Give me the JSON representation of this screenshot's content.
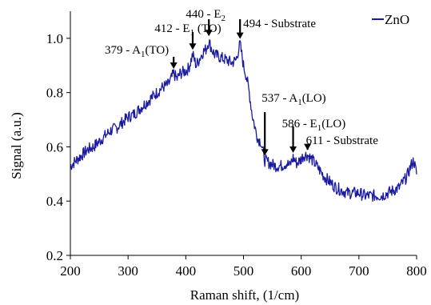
{
  "chart_data": {
    "type": "line",
    "xlabel": "Raman shift, (1/cm)",
    "ylabel": "Signal (a.u.)",
    "xlim": [
      200,
      800
    ],
    "ylim": [
      0.2,
      1.1
    ],
    "xticks": [
      200,
      300,
      400,
      500,
      600,
      700,
      800
    ],
    "yticks": [
      0.2,
      0.4,
      0.6,
      0.8,
      1.0
    ],
    "xtick_labels": [
      "200",
      "300",
      "400",
      "500",
      "600",
      "700",
      "800"
    ],
    "ytick_labels": [
      "0.2",
      "0.4",
      "0.6",
      "0.8",
      "1.0"
    ],
    "grid": false,
    "legend_position": "top-right",
    "series": [
      {
        "name": "ZnO",
        "color": "#1a1aa0",
        "x": [
          200,
          210,
          220,
          230,
          240,
          250,
          260,
          270,
          280,
          290,
          300,
          310,
          320,
          330,
          340,
          350,
          360,
          370,
          379,
          385,
          390,
          400,
          405,
          412,
          418,
          425,
          430,
          435,
          440,
          445,
          450,
          460,
          470,
          480,
          487,
          494,
          500,
          505,
          510,
          515,
          520,
          525,
          530,
          537,
          545,
          555,
          565,
          575,
          580,
          586,
          592,
          598,
          605,
          611,
          620,
          630,
          640,
          650,
          660,
          670,
          680,
          690,
          700,
          710,
          720,
          730,
          740,
          750,
          760,
          770,
          780,
          785,
          790,
          795,
          800
        ],
        "values": [
          0.53,
          0.55,
          0.57,
          0.59,
          0.6,
          0.62,
          0.64,
          0.66,
          0.67,
          0.69,
          0.71,
          0.72,
          0.74,
          0.76,
          0.78,
          0.8,
          0.82,
          0.83,
          0.87,
          0.85,
          0.87,
          0.88,
          0.89,
          0.94,
          0.9,
          0.93,
          0.95,
          0.96,
          0.99,
          0.96,
          0.94,
          0.93,
          0.92,
          0.91,
          0.92,
          0.98,
          0.9,
          0.86,
          0.8,
          0.72,
          0.67,
          0.63,
          0.62,
          0.55,
          0.54,
          0.53,
          0.53,
          0.54,
          0.53,
          0.56,
          0.54,
          0.55,
          0.57,
          0.57,
          0.55,
          0.52,
          0.49,
          0.47,
          0.45,
          0.44,
          0.43,
          0.43,
          0.43,
          0.42,
          0.42,
          0.42,
          0.42,
          0.43,
          0.44,
          0.45,
          0.48,
          0.5,
          0.53,
          0.55,
          0.5
        ]
      }
    ],
    "annotations": [
      {
        "label": "379 - A",
        "sub": "1",
        "rest": "(TO)",
        "x": 379,
        "y": 0.87
      },
      {
        "label": "412 - E",
        "sub": "1",
        "rest": " (TO)",
        "x": 412,
        "y": 0.94
      },
      {
        "label": "440 - E",
        "sub": "2",
        "rest": "",
        "x": 440,
        "y": 0.99
      },
      {
        "label": "494 - Substrate",
        "sub": "",
        "rest": "",
        "x": 494,
        "y": 0.98
      },
      {
        "label": "537 - A",
        "sub": "1",
        "rest": "(LO)",
        "x": 537,
        "y": 0.55
      },
      {
        "label": "586 - E",
        "sub": "1",
        "rest": "(LO)",
        "x": 586,
        "y": 0.56
      },
      {
        "label": "611 - Substrate",
        "sub": "",
        "rest": "",
        "x": 611,
        "y": 0.57
      }
    ]
  }
}
